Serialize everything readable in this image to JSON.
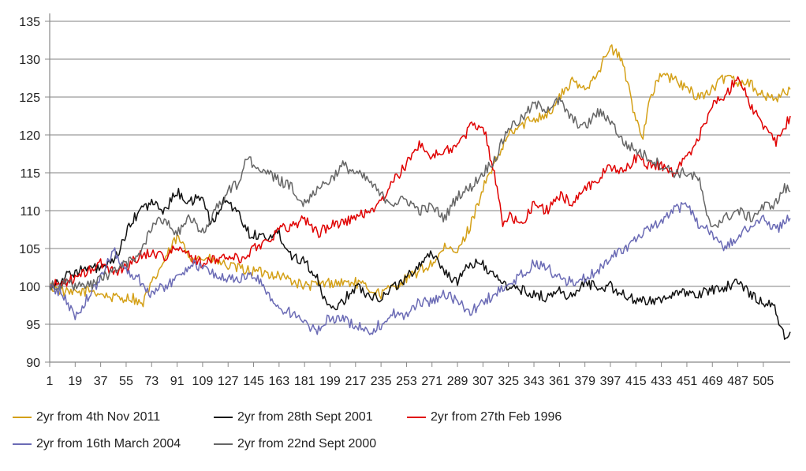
{
  "chart_data": {
    "type": "line",
    "title": "",
    "xlabel": "",
    "ylabel": "",
    "ylim": [
      90,
      135
    ],
    "yticks": [
      90,
      95,
      100,
      105,
      110,
      115,
      120,
      125,
      130,
      135
    ],
    "xlim": [
      1,
      524
    ],
    "xticks": [
      1,
      19,
      37,
      55,
      73,
      91,
      109,
      127,
      145,
      163,
      181,
      199,
      217,
      235,
      253,
      271,
      289,
      307,
      325,
      343,
      361,
      379,
      397,
      415,
      433,
      451,
      469,
      487,
      505
    ],
    "grid": "horizontal",
    "legend_position": "bottom",
    "series": [
      {
        "name": "2yr from 4th Nov 2011",
        "color": "#D4A017",
        "points": [
          [
            1,
            100
          ],
          [
            15,
            99
          ],
          [
            30,
            99.5
          ],
          [
            45,
            98.5
          ],
          [
            60,
            98.5
          ],
          [
            66,
            97.5
          ],
          [
            75,
            101
          ],
          [
            91,
            106.5
          ],
          [
            100,
            104
          ],
          [
            115,
            103.5
          ],
          [
            130,
            102.5
          ],
          [
            145,
            102
          ],
          [
            163,
            101.5
          ],
          [
            181,
            100
          ],
          [
            199,
            100.5
          ],
          [
            217,
            100.5
          ],
          [
            235,
            99
          ],
          [
            253,
            101
          ],
          [
            271,
            103
          ],
          [
            280,
            105
          ],
          [
            289,
            104.5
          ],
          [
            298,
            108
          ],
          [
            307,
            113
          ],
          [
            315,
            116
          ],
          [
            325,
            120
          ],
          [
            340,
            122
          ],
          [
            355,
            123
          ],
          [
            361,
            125
          ],
          [
            370,
            127
          ],
          [
            379,
            126
          ],
          [
            390,
            129
          ],
          [
            397,
            131.5
          ],
          [
            405,
            130
          ],
          [
            415,
            122
          ],
          [
            420,
            120
          ],
          [
            425,
            125
          ],
          [
            433,
            128
          ],
          [
            445,
            127
          ],
          [
            451,
            126
          ],
          [
            460,
            125
          ],
          [
            469,
            126
          ],
          [
            480,
            128
          ],
          [
            487,
            127
          ],
          [
            495,
            127
          ],
          [
            505,
            125
          ],
          [
            515,
            125
          ],
          [
            524,
            126
          ]
        ]
      },
      {
        "name": "2yr from 28th Sept 2001",
        "color": "#111111",
        "points": [
          [
            1,
            100
          ],
          [
            10,
            101
          ],
          [
            19,
            102
          ],
          [
            37,
            102.5
          ],
          [
            46,
            103
          ],
          [
            55,
            107
          ],
          [
            64,
            110
          ],
          [
            73,
            111
          ],
          [
            82,
            110
          ],
          [
            91,
            112.5
          ],
          [
            100,
            111
          ],
          [
            109,
            112
          ],
          [
            115,
            108
          ],
          [
            125,
            111.5
          ],
          [
            133,
            110
          ],
          [
            142,
            107
          ],
          [
            154,
            106.5
          ],
          [
            163,
            107
          ],
          [
            172,
            104
          ],
          [
            181,
            103.5
          ],
          [
            190,
            101
          ],
          [
            195,
            98
          ],
          [
            199,
            97
          ],
          [
            208,
            98
          ],
          [
            217,
            100
          ],
          [
            226,
            99
          ],
          [
            235,
            98.5
          ],
          [
            244,
            100
          ],
          [
            253,
            101
          ],
          [
            262,
            103
          ],
          [
            271,
            104.5
          ],
          [
            280,
            102
          ],
          [
            289,
            100.5
          ],
          [
            298,
            103
          ],
          [
            307,
            103
          ],
          [
            316,
            101
          ],
          [
            325,
            100
          ],
          [
            334,
            99.5
          ],
          [
            343,
            99
          ],
          [
            352,
            98.5
          ],
          [
            361,
            99.5
          ],
          [
            370,
            98.5
          ],
          [
            379,
            100.5
          ],
          [
            388,
            100
          ],
          [
            397,
            100
          ],
          [
            406,
            99
          ],
          [
            415,
            98
          ],
          [
            424,
            98
          ],
          [
            433,
            98.5
          ],
          [
            442,
            99
          ],
          [
            451,
            99
          ],
          [
            460,
            99
          ],
          [
            469,
            99.5
          ],
          [
            478,
            100
          ],
          [
            487,
            100.5
          ],
          [
            496,
            99
          ],
          [
            505,
            98
          ],
          [
            512,
            97.5
          ],
          [
            516,
            95
          ],
          [
            520,
            93.7
          ],
          [
            524,
            94
          ]
        ]
      },
      {
        "name": "2yr from 27th Feb 1996",
        "color": "#E00000",
        "points": [
          [
            1,
            100
          ],
          [
            19,
            101
          ],
          [
            37,
            103
          ],
          [
            46,
            102
          ],
          [
            55,
            102.5
          ],
          [
            64,
            104
          ],
          [
            73,
            104.5
          ],
          [
            82,
            104
          ],
          [
            91,
            105
          ],
          [
            100,
            104
          ],
          [
            109,
            103
          ],
          [
            118,
            103.5
          ],
          [
            127,
            104
          ],
          [
            136,
            103.5
          ],
          [
            145,
            105
          ],
          [
            154,
            106
          ],
          [
            163,
            107.5
          ],
          [
            172,
            108
          ],
          [
            181,
            109
          ],
          [
            190,
            107
          ],
          [
            199,
            108
          ],
          [
            208,
            108.5
          ],
          [
            217,
            109
          ],
          [
            226,
            110
          ],
          [
            235,
            111
          ],
          [
            244,
            114
          ],
          [
            253,
            116
          ],
          [
            262,
            119
          ],
          [
            271,
            117
          ],
          [
            280,
            118
          ],
          [
            289,
            118.5
          ],
          [
            298,
            121
          ],
          [
            307,
            121.5
          ],
          [
            316,
            114
          ],
          [
            321,
            108
          ],
          [
            325,
            109.5
          ],
          [
            334,
            108
          ],
          [
            343,
            111
          ],
          [
            352,
            110
          ],
          [
            361,
            112
          ],
          [
            370,
            111
          ],
          [
            379,
            113
          ],
          [
            388,
            114
          ],
          [
            397,
            116
          ],
          [
            406,
            115
          ],
          [
            415,
            117
          ],
          [
            424,
            116
          ],
          [
            433,
            116
          ],
          [
            442,
            115
          ],
          [
            451,
            117
          ],
          [
            460,
            120
          ],
          [
            469,
            124
          ],
          [
            478,
            125
          ],
          [
            487,
            128
          ],
          [
            496,
            124
          ],
          [
            505,
            121
          ],
          [
            514,
            119
          ],
          [
            520,
            121
          ],
          [
            524,
            122.5
          ]
        ]
      },
      {
        "name": "2yr from 16th March 2004",
        "color": "#6B6BB5",
        "points": [
          [
            1,
            100
          ],
          [
            10,
            99
          ],
          [
            19,
            96
          ],
          [
            28,
            98.5
          ],
          [
            37,
            101
          ],
          [
            46,
            105
          ],
          [
            55,
            102
          ],
          [
            64,
            101
          ],
          [
            73,
            99
          ],
          [
            82,
            100
          ],
          [
            91,
            101
          ],
          [
            100,
            103
          ],
          [
            109,
            102.5
          ],
          [
            118,
            101.5
          ],
          [
            127,
            101
          ],
          [
            136,
            101
          ],
          [
            145,
            101.5
          ],
          [
            154,
            99.5
          ],
          [
            163,
            97
          ],
          [
            172,
            96.5
          ],
          [
            181,
            95
          ],
          [
            190,
            94
          ],
          [
            199,
            96
          ],
          [
            208,
            95.5
          ],
          [
            217,
            95
          ],
          [
            226,
            94
          ],
          [
            235,
            95
          ],
          [
            244,
            96.5
          ],
          [
            253,
            96
          ],
          [
            262,
            98
          ],
          [
            271,
            98
          ],
          [
            280,
            99
          ],
          [
            289,
            98
          ],
          [
            298,
            96.5
          ],
          [
            307,
            98
          ],
          [
            316,
            99
          ],
          [
            325,
            100
          ],
          [
            334,
            101.5
          ],
          [
            343,
            103
          ],
          [
            352,
            102.5
          ],
          [
            361,
            101
          ],
          [
            370,
            100.5
          ],
          [
            379,
            101
          ],
          [
            388,
            102
          ],
          [
            397,
            104
          ],
          [
            406,
            105
          ],
          [
            415,
            106
          ],
          [
            424,
            107.5
          ],
          [
            433,
            108.5
          ],
          [
            442,
            110
          ],
          [
            451,
            111
          ],
          [
            460,
            108
          ],
          [
            469,
            107
          ],
          [
            478,
            105
          ],
          [
            487,
            106.5
          ],
          [
            496,
            108
          ],
          [
            505,
            109
          ],
          [
            514,
            107.5
          ],
          [
            520,
            108.5
          ],
          [
            524,
            109
          ]
        ]
      },
      {
        "name": "2yr from 22nd Sept 2000",
        "color": "#666666",
        "points": [
          [
            1,
            100
          ],
          [
            10,
            100.5
          ],
          [
            19,
            100
          ],
          [
            28,
            100
          ],
          [
            37,
            101
          ],
          [
            46,
            102
          ],
          [
            55,
            103
          ],
          [
            64,
            104
          ],
          [
            73,
            108
          ],
          [
            82,
            109
          ],
          [
            91,
            107
          ],
          [
            100,
            109
          ],
          [
            109,
            107
          ],
          [
            118,
            110
          ],
          [
            127,
            112.5
          ],
          [
            136,
            114
          ],
          [
            141,
            117.5
          ],
          [
            145,
            116
          ],
          [
            154,
            115
          ],
          [
            163,
            114
          ],
          [
            172,
            113
          ],
          [
            181,
            111
          ],
          [
            190,
            113
          ],
          [
            199,
            114
          ],
          [
            208,
            116
          ],
          [
            217,
            115
          ],
          [
            226,
            114
          ],
          [
            235,
            112
          ],
          [
            244,
            111
          ],
          [
            253,
            111.5
          ],
          [
            262,
            110
          ],
          [
            271,
            110.5
          ],
          [
            280,
            109
          ],
          [
            289,
            112
          ],
          [
            298,
            113
          ],
          [
            307,
            115
          ],
          [
            316,
            117
          ],
          [
            325,
            121
          ],
          [
            334,
            122
          ],
          [
            343,
            124
          ],
          [
            352,
            123.5
          ],
          [
            361,
            124.5
          ],
          [
            370,
            122
          ],
          [
            379,
            121
          ],
          [
            388,
            123
          ],
          [
            397,
            122
          ],
          [
            406,
            119
          ],
          [
            415,
            118
          ],
          [
            424,
            117
          ],
          [
            433,
            116
          ],
          [
            442,
            115
          ],
          [
            451,
            115
          ],
          [
            460,
            114
          ],
          [
            465,
            109
          ],
          [
            469,
            108
          ],
          [
            478,
            109
          ],
          [
            487,
            110
          ],
          [
            496,
            109
          ],
          [
            505,
            110.5
          ],
          [
            514,
            111
          ],
          [
            520,
            113
          ],
          [
            524,
            112.5
          ]
        ]
      }
    ]
  }
}
